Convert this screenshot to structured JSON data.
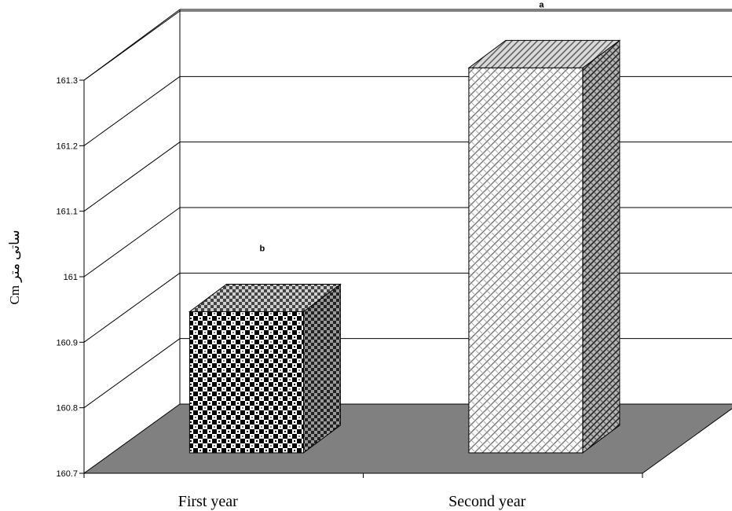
{
  "chart_data": {
    "type": "bar",
    "style": "3d",
    "categories": [
      "First year",
      "Second year"
    ],
    "values": [
      160.92,
      161.3
    ],
    "significance_letters": [
      "b",
      "a"
    ],
    "ylabel": "Cm ساتی متر",
    "ylim": [
      160.7,
      161.3
    ],
    "yticks": [
      160.7,
      160.8,
      160.9,
      161,
      161.1,
      161.2,
      161.3
    ],
    "grid": true,
    "legend": "none",
    "colors": {
      "floor": "#808080",
      "bar_front": "#ffffff",
      "bar_dark": "#000000",
      "bar_light": "#c8c8c8"
    }
  }
}
